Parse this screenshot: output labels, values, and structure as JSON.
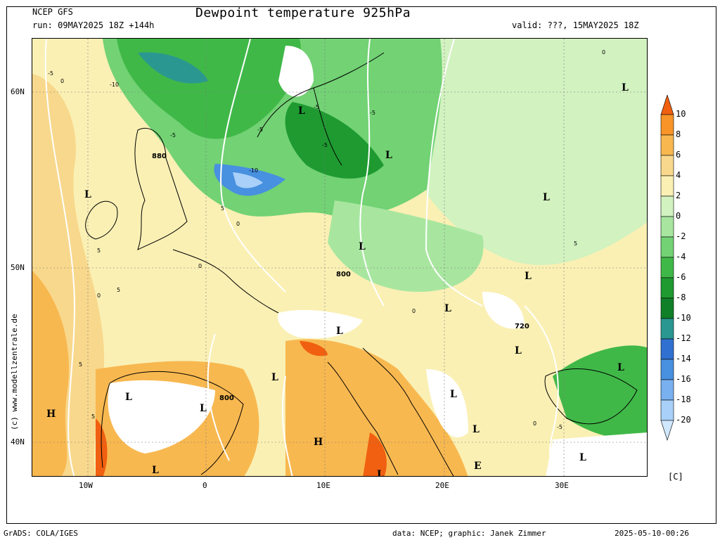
{
  "header": {
    "model": "NCEP GFS",
    "run": "run: 09MAY2025 18Z +144h",
    "title": "Dewpoint temperature 925hPa",
    "valid": "valid: ???, 15MAY2025 18Z"
  },
  "footer": {
    "left": "GrADS: COLA/IGES",
    "credit": "data: NCEP; graphic: Janek Zimmer",
    "timestamp": "2025-05-10-00:26"
  },
  "copyright": "(c) www.modellzentrale.de",
  "axes": {
    "lat_labels": [
      "60N",
      "50N",
      "40N"
    ],
    "lon_labels": [
      "10W",
      "0",
      "10E",
      "20E",
      "30E"
    ]
  },
  "colorbar": {
    "unit": "[C]",
    "levels": [
      "10",
      "8",
      "6",
      "4",
      "2",
      "0",
      "-2",
      "-4",
      "-6",
      "-8",
      "-10",
      "-12",
      "-14",
      "-16",
      "-18",
      "-20"
    ],
    "colors": [
      "#f06010",
      "#f89428",
      "#f8b850",
      "#f8d88c",
      "#faf0b4",
      "#d2f2c0",
      "#a8e6a0",
      "#72d274",
      "#40b848",
      "#1e9a30",
      "#108028",
      "#2a9890",
      "#3070d0",
      "#4890e0",
      "#78b0f0",
      "#a8d0f8",
      "#d0e8ff"
    ]
  },
  "map_labels": {
    "pressure_letters": [
      {
        "text": "L"
      },
      {
        "text": "L"
      },
      {
        "text": "L"
      },
      {
        "text": "L"
      },
      {
        "text": "L"
      },
      {
        "text": "L"
      },
      {
        "text": "L"
      },
      {
        "text": "L"
      },
      {
        "text": "L"
      },
      {
        "text": "L"
      },
      {
        "text": "L"
      },
      {
        "text": "L"
      },
      {
        "text": "L"
      },
      {
        "text": "L"
      },
      {
        "text": "L"
      },
      {
        "text": "L"
      },
      {
        "text": "L"
      },
      {
        "text": "L"
      },
      {
        "text": "L"
      },
      {
        "text": "H"
      },
      {
        "text": "H"
      },
      {
        "text": "E"
      }
    ],
    "geopotential": [
      "880",
      "800",
      "720",
      "800"
    ],
    "contour_values": [
      "-5",
      "0",
      "-10",
      "-5",
      "-5",
      "-5",
      "-5",
      "-10",
      "-5",
      "0",
      "5",
      "0",
      "5",
      "0",
      "5",
      "0",
      "5",
      "5",
      "0",
      "5",
      "-5",
      "0"
    ]
  }
}
